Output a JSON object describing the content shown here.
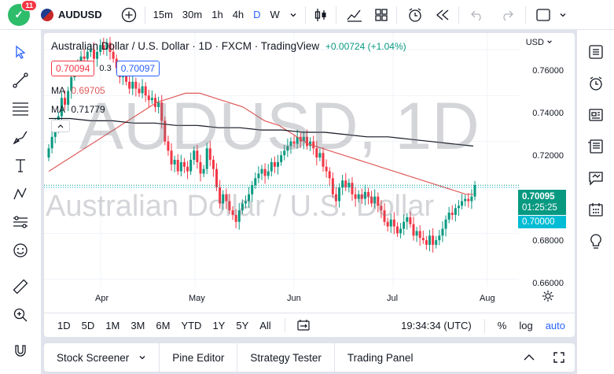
{
  "topbar": {
    "avatar_letter": "",
    "notification_count": "11",
    "symbol": "AUDUSD",
    "intervals": [
      "15m",
      "30m",
      "1h",
      "4h",
      "D",
      "W"
    ],
    "active_interval": "D"
  },
  "chart": {
    "title": "Australian Dollar / U.S. Dollar · 1D · FXCM · TradingView",
    "change": "+0.00724 (+1.04%)",
    "sell_price": "0.70094",
    "spread": "0.3",
    "buy_price": "0.70097",
    "ma1_label": "MA",
    "ma1_value": "0.69705",
    "ma2_label": "MA",
    "ma2_value": "0.71779",
    "currency": "USD",
    "watermark_symbol": "AUDUSD, 1D",
    "watermark_name": "Australian Dollar / U.S. Dollar",
    "last_price": "0.70095",
    "countdown": "01:25:25",
    "level_price": "0.70000",
    "colors": {
      "up": "#089981",
      "down": "#f23645",
      "ma_fast": "#e05b5b",
      "ma_slow": "#131722",
      "accent": "#2962ff",
      "level": "#00bcd4"
    }
  },
  "chart_data": {
    "type": "candlestick",
    "y_ticks": [
      "0.76000",
      "0.74000",
      "0.72000",
      "0.68000",
      "0.66000"
    ],
    "x_ticks": [
      "Apr",
      "May",
      "Jun",
      "Jul",
      "Aug"
    ],
    "ylim": [
      0.6568,
      0.7672
    ],
    "closes": [
      0.717,
      0.722,
      0.727,
      0.731,
      0.739,
      0.736,
      0.742,
      0.748,
      0.751,
      0.754,
      0.757,
      0.756,
      0.759,
      0.76,
      0.756,
      0.759,
      0.762,
      0.76,
      0.763,
      0.759,
      0.756,
      0.752,
      0.748,
      0.75,
      0.746,
      0.743,
      0.746,
      0.743,
      0.741,
      0.744,
      0.74,
      0.738,
      0.739,
      0.735,
      0.737,
      0.729,
      0.72,
      0.716,
      0.71,
      0.712,
      0.707,
      0.711,
      0.709,
      0.707,
      0.712,
      0.716,
      0.711,
      0.706,
      0.708,
      0.717,
      0.712,
      0.708,
      0.7,
      0.693,
      0.697,
      0.694,
      0.69,
      0.688,
      0.685,
      0.69,
      0.693,
      0.694,
      0.697,
      0.701,
      0.704,
      0.706,
      0.708,
      0.705,
      0.707,
      0.711,
      0.709,
      0.711,
      0.714,
      0.716,
      0.718,
      0.72,
      0.719,
      0.722,
      0.72,
      0.722,
      0.718,
      0.72,
      0.717,
      0.713,
      0.715,
      0.709,
      0.707,
      0.704,
      0.697,
      0.694,
      0.7,
      0.703,
      0.7,
      0.702,
      0.697,
      0.695,
      0.697,
      0.695,
      0.698,
      0.696,
      0.693,
      0.696,
      0.692,
      0.69,
      0.685,
      0.683,
      0.686,
      0.683,
      0.68,
      0.682,
      0.685,
      0.687,
      0.684,
      0.679,
      0.681,
      0.678,
      0.677,
      0.675,
      0.679,
      0.675,
      0.677,
      0.679,
      0.682,
      0.686,
      0.689,
      0.688,
      0.691,
      0.692,
      0.694,
      0.695,
      0.694,
      0.696,
      0.701
    ],
    "ma_fast": [
      0.707,
      0.709,
      0.711,
      0.713,
      0.715,
      0.717,
      0.719,
      0.721,
      0.723,
      0.725,
      0.727,
      0.729,
      0.731,
      0.733,
      0.735,
      0.737,
      0.738,
      0.739,
      0.74,
      0.741,
      0.741,
      0.741,
      0.74,
      0.739,
      0.738,
      0.737,
      0.736,
      0.735,
      0.733,
      0.731,
      0.729,
      0.728,
      0.727,
      0.725,
      0.723,
      0.721,
      0.719,
      0.718,
      0.717,
      0.716,
      0.715,
      0.714,
      0.713,
      0.712,
      0.711,
      0.71,
      0.709,
      0.708,
      0.707,
      0.706,
      0.705,
      0.704,
      0.703,
      0.702,
      0.701,
      0.7,
      0.699,
      0.698,
      0.697,
      0.697
    ],
    "ma_slow": [
      0.73,
      0.73,
      0.729,
      0.729,
      0.728,
      0.728,
      0.727,
      0.727,
      0.726,
      0.726,
      0.725,
      0.725,
      0.724,
      0.724,
      0.723,
      0.722,
      0.722,
      0.721,
      0.72,
      0.719,
      0.718
    ],
    "last": 0.70095,
    "level": 0.7
  },
  "ranges": [
    "1D",
    "5D",
    "1M",
    "3M",
    "6M",
    "YTD",
    "1Y",
    "5Y",
    "All"
  ],
  "footer": {
    "time": "19:34:34 (UTC)",
    "percent": "%",
    "log": "log",
    "auto": "auto"
  },
  "bottom_tabs": [
    "Stock Screener",
    "Pine Editor",
    "Strategy Tester",
    "Trading Panel"
  ],
  "icons": {
    "add_symbol": "plus-circle-icon",
    "bars": "candle-icon",
    "indicators": "indicators-icon",
    "layout": "layout-icon",
    "alert": "alert-clock-icon",
    "replay": "replay-icon",
    "undo": "undo-icon",
    "redo": "redo-icon"
  }
}
